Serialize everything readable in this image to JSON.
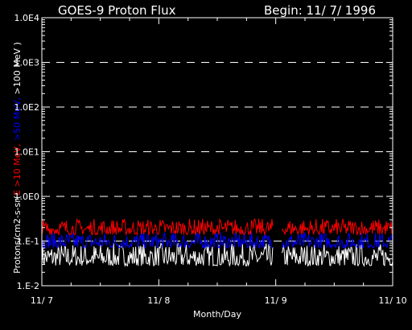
{
  "chart_data": {
    "type": "line",
    "title": "GOES-9 Proton Flux",
    "begin_label": "Begin: 11/ 7/ 1996",
    "xlabel": "Month/Day",
    "ylabel_prefix": "Protons/cm2-s-sr(",
    "ylabel_series": [
      {
        "text": "E >10 MeV,",
        "color": "#ff0000"
      },
      {
        "text": " >50 MeV,",
        "color": "#0000ff"
      },
      {
        "text": " >100 MeV",
        "color": "#ffffff"
      }
    ],
    "ylabel_suffix": " )",
    "yscale": "log",
    "ylim": [
      0.01,
      10000
    ],
    "y_ticks": [
      {
        "value": 0.01,
        "label": "1.E-2"
      },
      {
        "value": 0.1,
        "label": "1.E-1"
      },
      {
        "value": 1,
        "label": "1.0E0"
      },
      {
        "value": 10,
        "label": "1.0E1"
      },
      {
        "value": 100,
        "label": "1.0E2"
      },
      {
        "value": 1000,
        "label": "1.0E3"
      },
      {
        "value": 10000,
        "label": "1.0E4"
      }
    ],
    "x_ticks": [
      {
        "value": 0,
        "label": "11/ 7"
      },
      {
        "value": 1,
        "label": "11/ 8"
      },
      {
        "value": 2,
        "label": "11/ 9"
      },
      {
        "value": 3,
        "label": "11/ 10"
      }
    ],
    "xlim": [
      0,
      3
    ],
    "grid": "dashed horizontal",
    "data_gap": [
      1.98,
      2.05
    ],
    "series": [
      {
        "name": ">100 MeV",
        "color": "#ffffff",
        "min": 0.028,
        "max": 0.09
      },
      {
        "name": ">50 MeV",
        "color": "#0000ff",
        "min": 0.07,
        "max": 0.16
      },
      {
        "name": ">10 MeV",
        "color": "#ff0000",
        "min": 0.14,
        "max": 0.32
      }
    ]
  }
}
